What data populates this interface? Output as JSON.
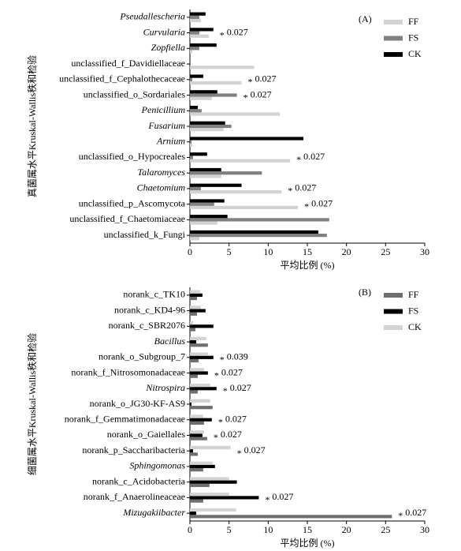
{
  "chart_data": [
    {
      "type": "hbar",
      "label": "(A)",
      "ylabel": "真菌属水平Kruskal-Wallis秩和检验",
      "xlabel": "平均比例 (%)",
      "categories": [
        "Pseudallescheria",
        "Curvularia",
        "Zopfiella",
        "unclassified_f_Davidiellaceae",
        "unclassified_f_Cephalothecaceae",
        "unclassified_o_Sordariales",
        "Penicillium",
        "Fusarium",
        "Arnium",
        "unclassified_o_Hypocreales",
        "Talaromyces",
        "Chaetomium",
        "unclassified_p_Ascomycota",
        "unclassified_f_Chaetomiaceae",
        "unclassified_k_Fungi"
      ],
      "italic": [
        true,
        true,
        true,
        false,
        false,
        false,
        true,
        true,
        true,
        false,
        true,
        true,
        false,
        false,
        false
      ],
      "annotation_marker": "*",
      "annotations": [
        null,
        "0.027",
        null,
        null,
        "0.027",
        "0.027",
        null,
        null,
        null,
        "0.027",
        null,
        "0.027",
        "0.027",
        null,
        null
      ],
      "series": [
        {
          "name": "FF",
          "color": "#d3d3d3",
          "values": [
            1.4,
            2.4,
            0.3,
            8.2,
            6.6,
            2.8,
            11.5,
            4.3,
            0.3,
            12.8,
            4.0,
            11.7,
            13.8,
            3.5,
            1.2
          ]
        },
        {
          "name": "FS",
          "color": "#808080",
          "values": [
            1.2,
            1.2,
            1.2,
            0.1,
            0.3,
            6.0,
            1.5,
            5.3,
            0.2,
            0.4,
            9.2,
            1.4,
            3.1,
            17.8,
            17.5
          ]
        },
        {
          "name": "CK",
          "color": "#000000",
          "values": [
            2.0,
            3.0,
            3.4,
            0,
            1.7,
            3.5,
            1.0,
            4.5,
            14.5,
            2.2,
            4.0,
            6.6,
            4.4,
            4.8,
            16.4
          ]
        }
      ],
      "xlim": [
        0,
        30
      ],
      "xticks": [
        0,
        5,
        10,
        15,
        20,
        25,
        30
      ]
    },
    {
      "type": "hbar",
      "label": "(B)",
      "ylabel": "细菌属水平Kruskal-Wallis秩和检验",
      "xlabel": "平均比例 (%)",
      "categories": [
        "norank_c_TK10",
        "norank_c_KD4-96",
        "norank_c_SBR2076",
        "Bacillus",
        "norank_o_Subgroup_7",
        "norank_f_Nitrosomonadaceae",
        "Nitrospira",
        "norank_o_JG30-KF-AS9",
        "norank_f_Gemmatimonadaceae",
        "norank_o_Gaiellales",
        "norank_p_Saccharibacteria",
        "Sphingomonas",
        "norank_c_Acidobacteria",
        "norank_f_Anaerolineaceae",
        "Mizugakiibacter"
      ],
      "italic": [
        false,
        false,
        false,
        true,
        false,
        false,
        true,
        false,
        false,
        false,
        false,
        true,
        false,
        false,
        true
      ],
      "annotation_marker": "*",
      "annotations": [
        null,
        null,
        null,
        null,
        "0.039",
        "0.027",
        "0.027",
        null,
        "0.027",
        "0.027",
        "0.027",
        null,
        null,
        "0.027",
        "0.027"
      ],
      "series": [
        {
          "name": "FF",
          "color": "#6e6e6e",
          "values": [
            0.9,
            0.9,
            0.7,
            2.3,
            1.1,
            1.0,
            1.0,
            2.9,
            1.8,
            2.2,
            1.0,
            1.7,
            2.5,
            1.7,
            25.8
          ]
        },
        {
          "name": "FS",
          "color": "#000000",
          "values": [
            1.6,
            2.0,
            3.0,
            0.8,
            3.0,
            2.3,
            3.4,
            0.2,
            2.8,
            1.6,
            0.4,
            3.2,
            6.0,
            8.8,
            0.8
          ]
        },
        {
          "name": "CK",
          "color": "#d3d3d3",
          "values": [
            1.3,
            1.4,
            0.4,
            2.1,
            2.3,
            1.8,
            2.6,
            2.6,
            1.7,
            1.8,
            5.2,
            2.9,
            5.0,
            5.0,
            5.9
          ]
        }
      ],
      "xlim": [
        0,
        30
      ],
      "xticks": [
        0,
        5,
        10,
        15,
        20,
        25,
        30
      ]
    }
  ]
}
